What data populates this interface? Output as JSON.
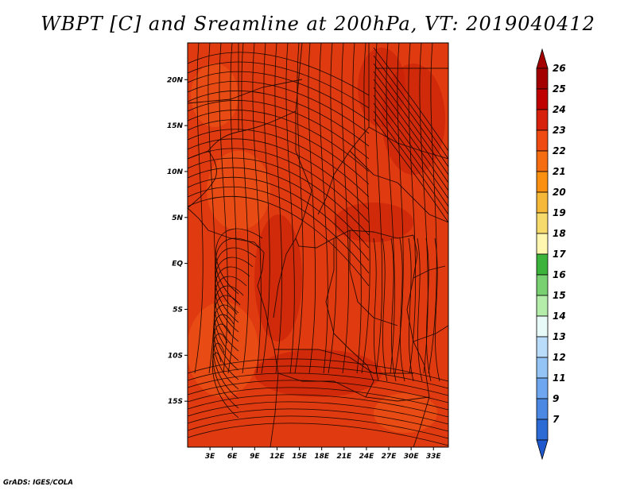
{
  "title": "WBPT [C] and Sreamline at 200hPa, VT: 2019040412",
  "credit": "GrADS: IGES/COLA",
  "map": {
    "lat_ticks": [
      {
        "value": 20,
        "label": "20N"
      },
      {
        "value": 15,
        "label": "15N"
      },
      {
        "value": 10,
        "label": "10N"
      },
      {
        "value": 5,
        "label": "5N"
      },
      {
        "value": 0,
        "label": "EQ"
      },
      {
        "value": -5,
        "label": "5S"
      },
      {
        "value": -10,
        "label": "10S"
      },
      {
        "value": -15,
        "label": "15S"
      }
    ],
    "lon_ticks": [
      {
        "value": 3,
        "label": "3E"
      },
      {
        "value": 6,
        "label": "6E"
      },
      {
        "value": 9,
        "label": "9E"
      },
      {
        "value": 12,
        "label": "12E"
      },
      {
        "value": 15,
        "label": "15E"
      },
      {
        "value": 18,
        "label": "18E"
      },
      {
        "value": 21,
        "label": "21E"
      },
      {
        "value": 24,
        "label": "24E"
      },
      {
        "value": 27,
        "label": "27E"
      },
      {
        "value": 30,
        "label": "30E"
      },
      {
        "value": 33,
        "label": "33E"
      }
    ],
    "lon_range": [
      0,
      35
    ],
    "lat_range": [
      -20,
      24
    ],
    "field_color": "#e03a10",
    "field_dark": "#c41e06",
    "field_light": "#ee5a18"
  },
  "colorbar": {
    "levels": [
      {
        "label": "26",
        "color": "#a50000"
      },
      {
        "label": "25",
        "color": "#c00000"
      },
      {
        "label": "24",
        "color": "#d8210c"
      },
      {
        "label": "23",
        "color": "#ee4a12"
      },
      {
        "label": "22",
        "color": "#f66c10"
      },
      {
        "label": "21",
        "color": "#fb9010"
      },
      {
        "label": "20",
        "color": "#f5b838"
      },
      {
        "label": "19",
        "color": "#f7da6c"
      },
      {
        "label": "18",
        "color": "#fff6b0"
      },
      {
        "label": "17",
        "color": "#3cb43c"
      },
      {
        "label": "16",
        "color": "#78d070"
      },
      {
        "label": "15",
        "color": "#b4ecaa"
      },
      {
        "label": "14",
        "color": "#e8faf8"
      },
      {
        "label": "13",
        "color": "#b8dcfa"
      },
      {
        "label": "12",
        "color": "#94c4f6"
      },
      {
        "label": "11",
        "color": "#6ea6f0"
      },
      {
        "label": "9",
        "color": "#4a88e4"
      },
      {
        "label": "7",
        "color": "#2c6ad6"
      }
    ],
    "lower_tip_color": "#1f58cc",
    "upper_tip_color": "#a50000"
  }
}
